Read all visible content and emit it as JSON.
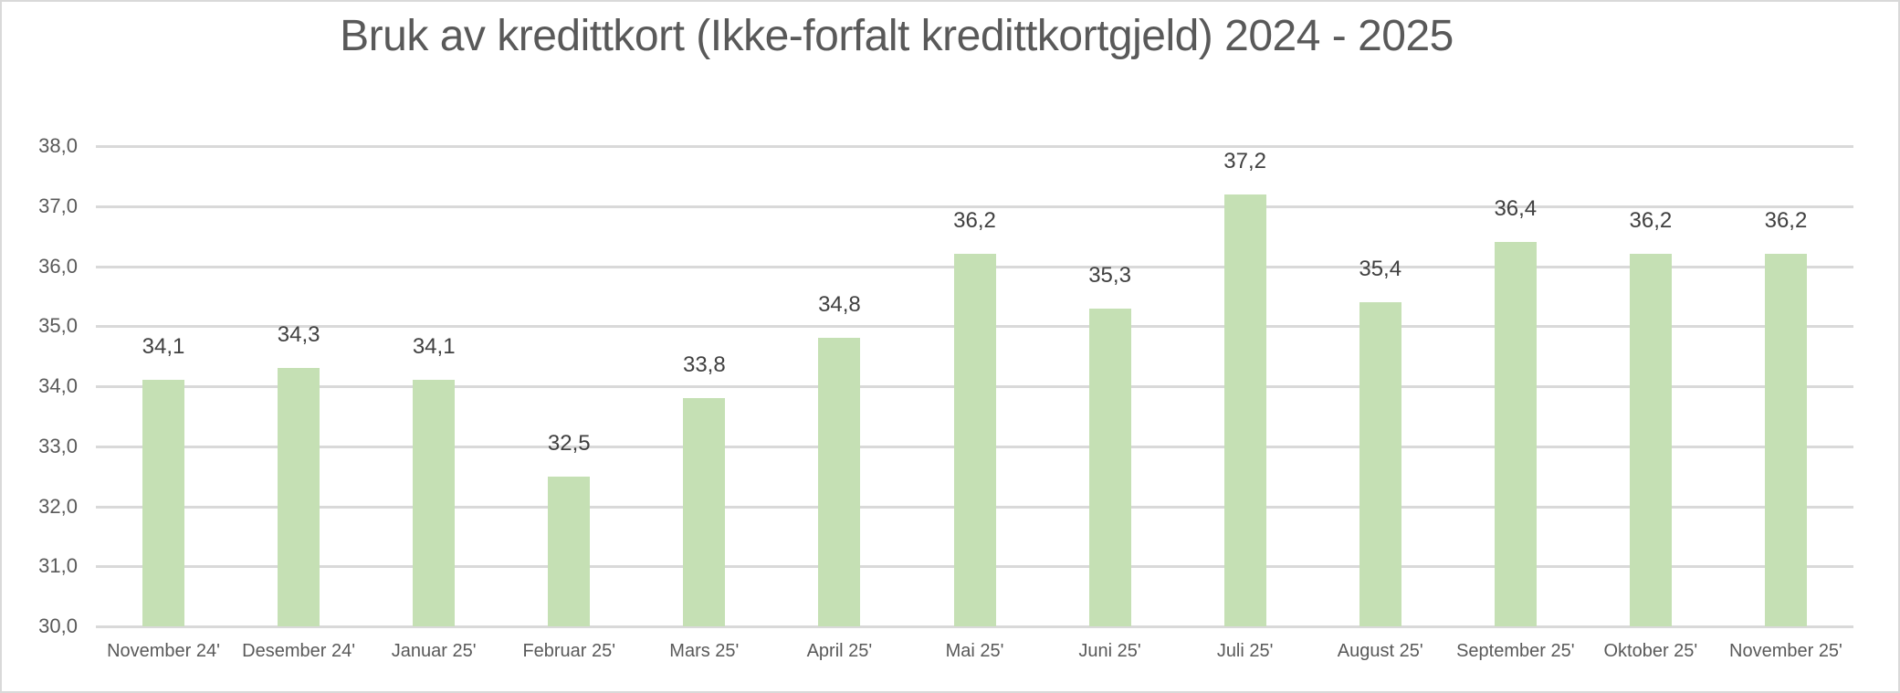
{
  "chart_data": {
    "type": "bar",
    "title": "Bruk av kredittkort (Ikke-forfalt kredittkortgjeld) 2024 - 2025",
    "xlabel": "",
    "ylabel": "",
    "categories": [
      "November 24'",
      "Desember 24'",
      "Januar 25'",
      "Februar 25'",
      "Mars 25'",
      "April 25'",
      "Mai 25'",
      "Juni 25'",
      "Juli 25'",
      "August 25'",
      "September 25'",
      "Oktober 25'",
      "November 25'"
    ],
    "values": [
      34.1,
      34.3,
      34.1,
      32.5,
      33.8,
      34.8,
      36.2,
      35.3,
      37.2,
      35.4,
      36.4,
      36.2,
      36.2
    ],
    "data_labels": [
      "34,1",
      "34,3",
      "34,1",
      "32,5",
      "33,8",
      "34,8",
      "36,2",
      "35,3",
      "37,2",
      "35,4",
      "36,4",
      "36,2",
      "36,2"
    ],
    "ylim": [
      30,
      38
    ],
    "yticks": [
      30,
      31,
      32,
      33,
      34,
      35,
      36,
      37,
      38
    ],
    "ytick_labels": [
      "30,0",
      "31,0",
      "32,0",
      "33,0",
      "34,0",
      "35,0",
      "36,0",
      "37,0",
      "38,0"
    ],
    "grid": true,
    "legend": "none",
    "bar_color": "#c5e0b4"
  },
  "colors": {
    "bar": "#c5e0b4",
    "gridline": "#d9d9d9",
    "title_text": "#595959",
    "axis_text": "#595959",
    "data_label_text": "#404040",
    "border": "#d9d9d9"
  }
}
